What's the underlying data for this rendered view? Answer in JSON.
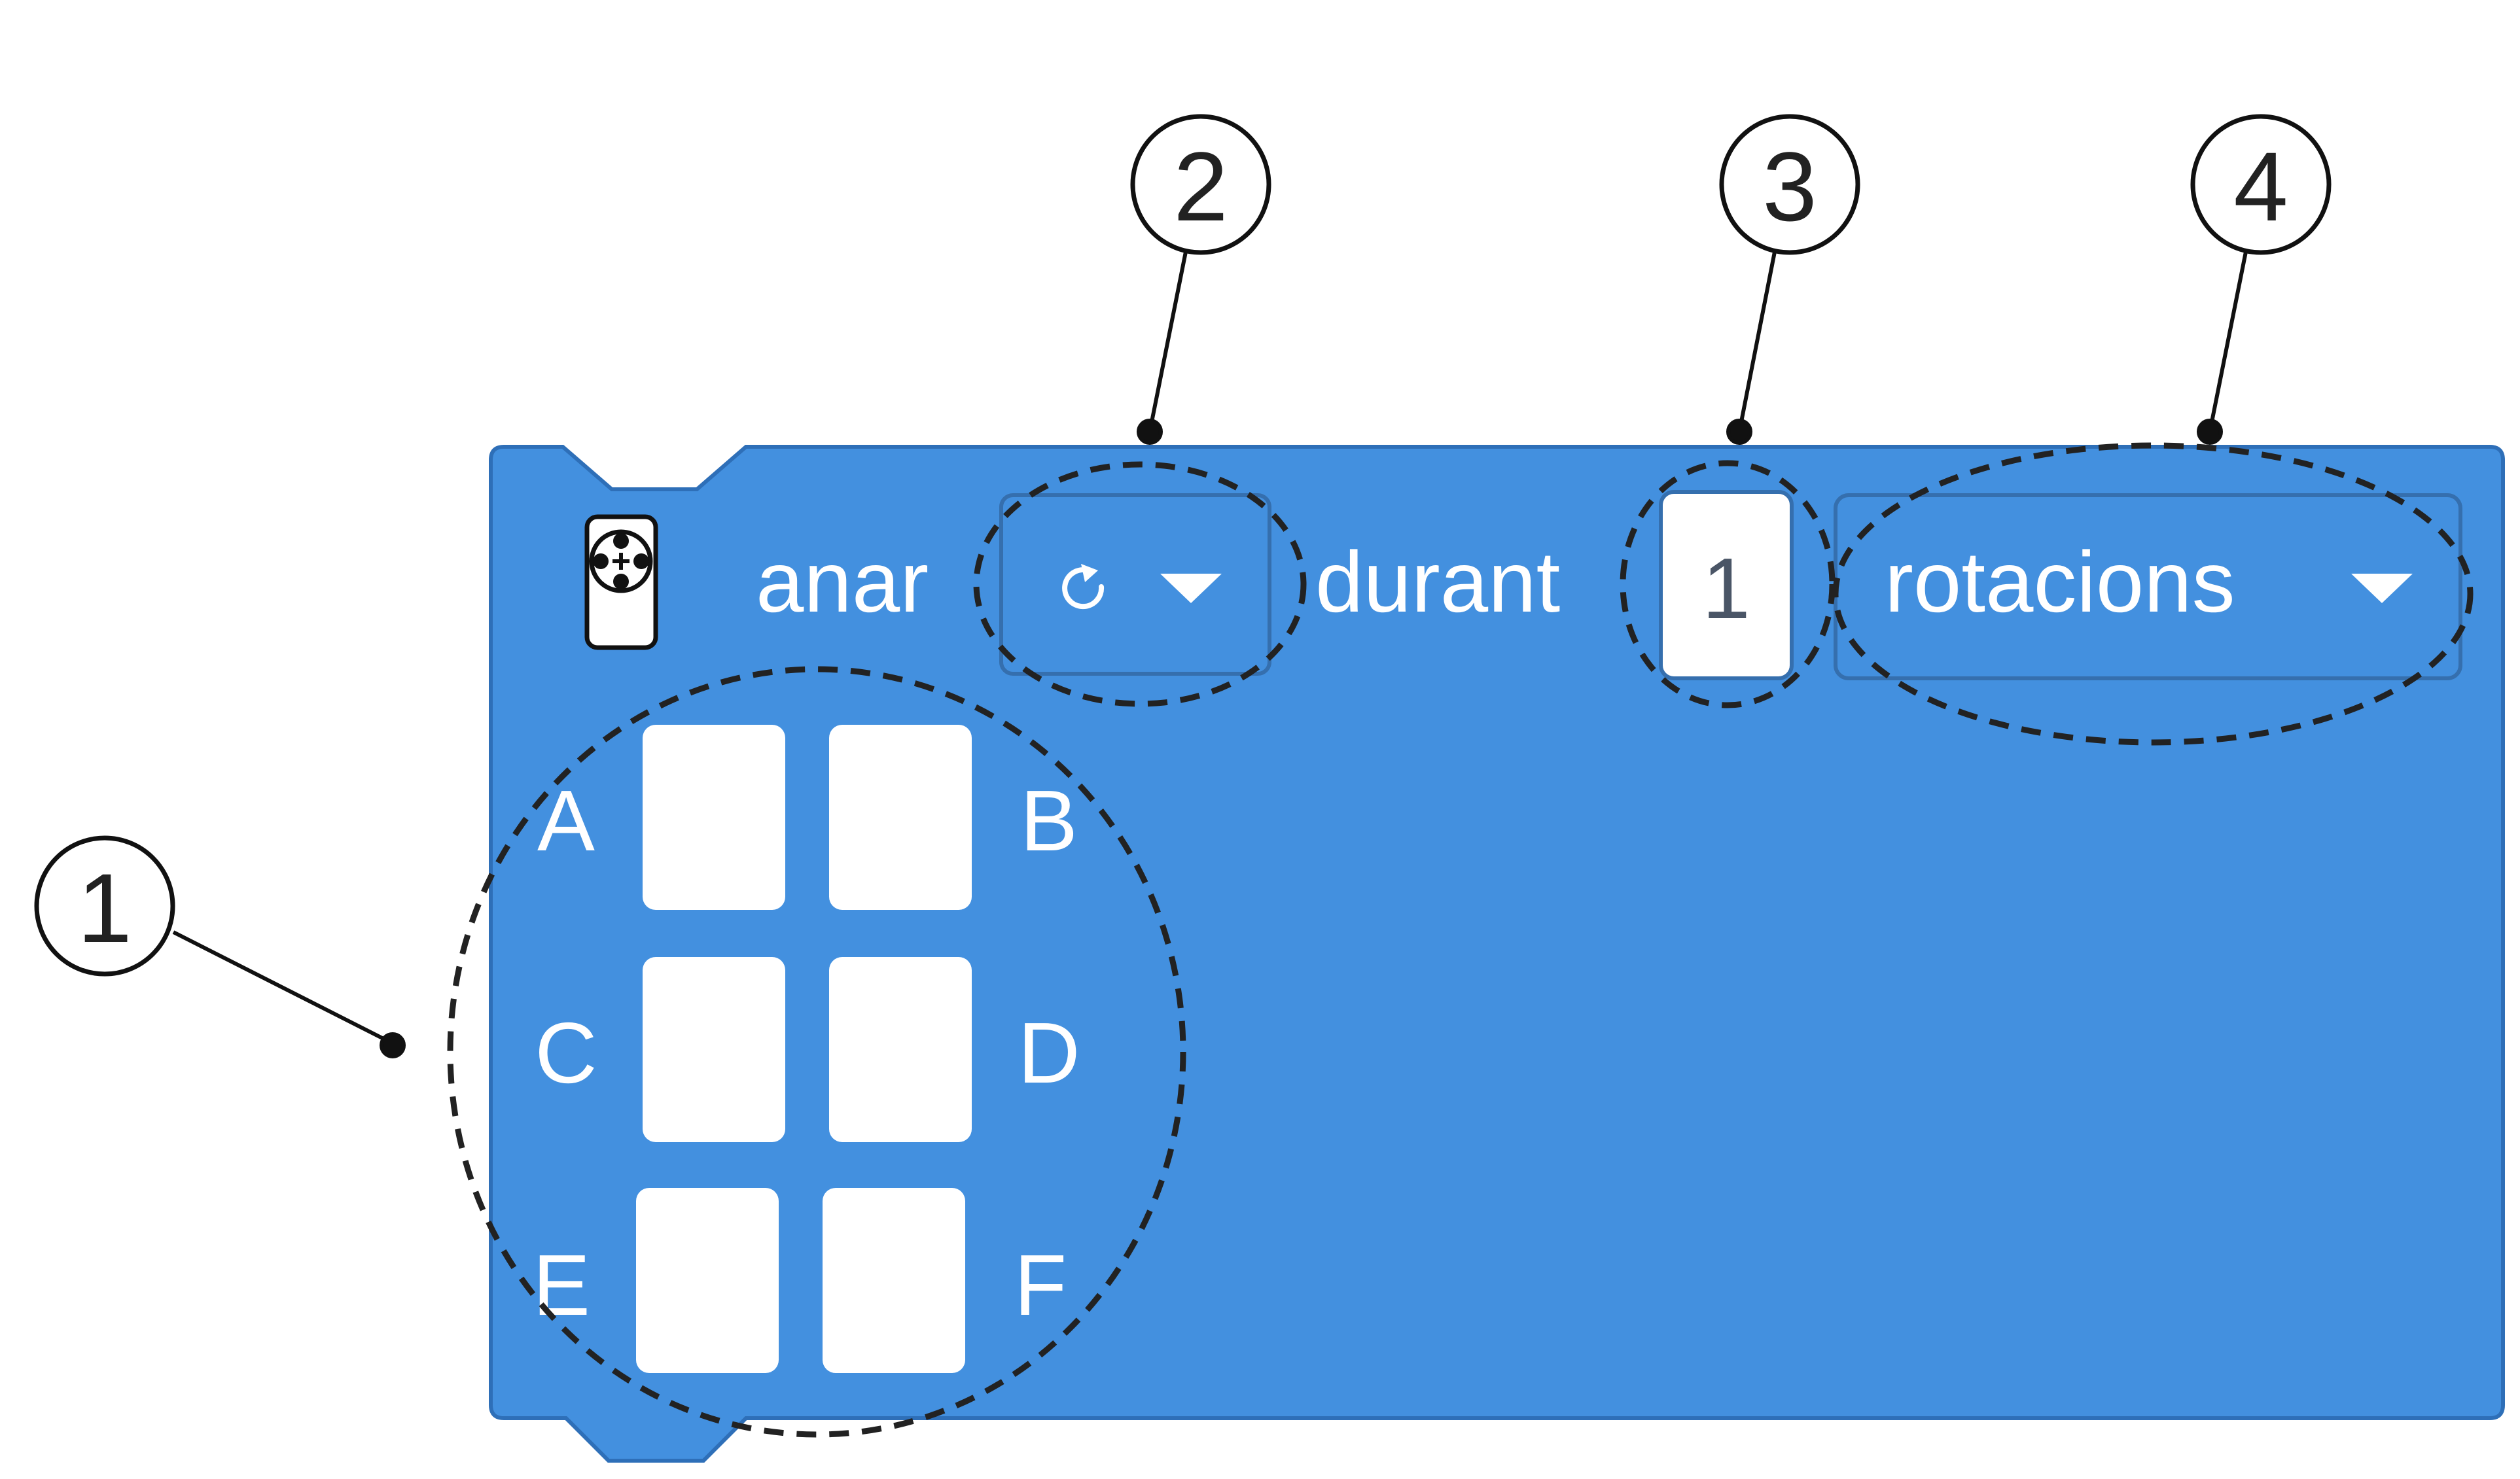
{
  "block": {
    "keyword_go": "anar",
    "direction_icon": "rotate-clockwise-icon",
    "keyword_for": "durant",
    "amount_value": "1",
    "unit_value": "rotacions",
    "ports": [
      "A",
      "B",
      "C",
      "D",
      "E",
      "F"
    ],
    "colors": {
      "block_fill": "#4390DF",
      "block_border": "#2E6FB8",
      "field_border": "#356FAE",
      "white": "#FFFFFF",
      "value_text": "#4A5566",
      "annotation": "#222222"
    }
  },
  "callouts": [
    {
      "number": "1",
      "target": "port selector"
    },
    {
      "number": "2",
      "target": "direction dropdown"
    },
    {
      "number": "3",
      "target": "amount input"
    },
    {
      "number": "4",
      "target": "unit dropdown"
    }
  ]
}
